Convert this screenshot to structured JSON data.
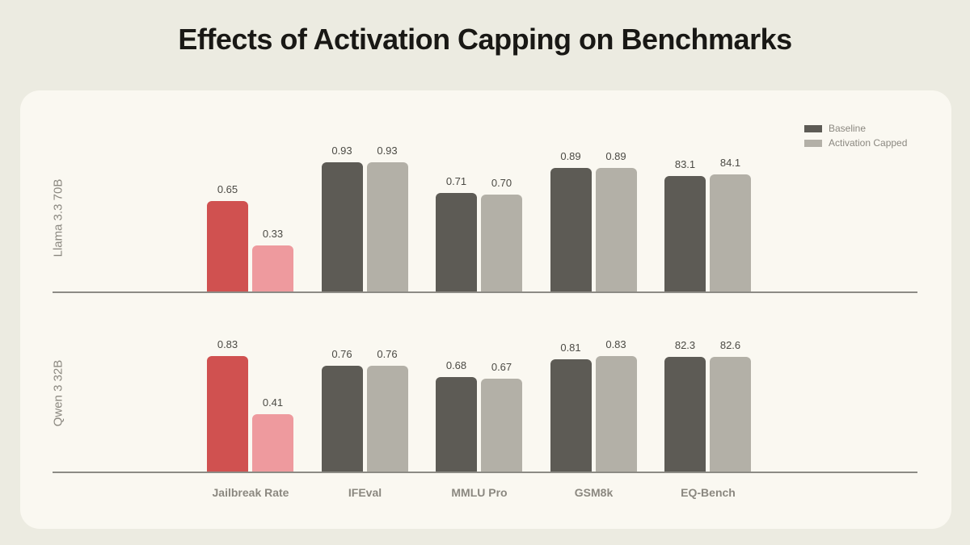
{
  "page": {
    "title": "Effects of Activation Capping on Benchmarks"
  },
  "legend": {
    "items": [
      {
        "label": "Baseline",
        "color_key": "baseline"
      },
      {
        "label": "Activation Capped",
        "color_key": "capped"
      }
    ]
  },
  "colors": {
    "baseline": "#5d5b55",
    "capped": "#b3b0a7",
    "jailbreak_baseline": "#d05150",
    "jailbreak_capped": "#ee9a9e",
    "axis": "#8c8b85",
    "page_bg": "#ecebe1",
    "card_bg": "#faf8f1",
    "title_text": "#191815",
    "muted_text": "#8b8880",
    "value_text": "#4b4a44"
  },
  "chart_data": {
    "type": "bar",
    "title": "Effects of Activation Capping on Benchmarks",
    "categories": [
      "Jailbreak Rate",
      "IFEval",
      "MMLU Pro",
      "GSM8k",
      "EQ-Bench"
    ],
    "legend_entries": [
      "Baseline",
      "Activation Capped"
    ],
    "legend_position": "top-right",
    "grid": false,
    "value_axis_range": [
      0,
      1
    ],
    "normalization_note": "EQ-Bench values are on a 0-100 scale and drawn as value/100; Jailbreak Rate bars use red/pink colors",
    "panels": [
      {
        "model": "Llama 3.3 70B",
        "series": [
          {
            "name": "Baseline",
            "values": [
              0.65,
              0.93,
              0.71,
              0.89,
              83.1
            ],
            "labels": [
              "0.65",
              "0.93",
              "0.71",
              "0.89",
              "83.1"
            ]
          },
          {
            "name": "Activation Capped",
            "values": [
              0.33,
              0.93,
              0.7,
              0.89,
              84.1
            ],
            "labels": [
              "0.33",
              "0.93",
              "0.70",
              "0.89",
              "84.1"
            ]
          }
        ]
      },
      {
        "model": "Qwen 3 32B",
        "series": [
          {
            "name": "Baseline",
            "values": [
              0.83,
              0.76,
              0.68,
              0.81,
              82.3
            ],
            "labels": [
              "0.83",
              "0.76",
              "0.68",
              "0.81",
              "82.3"
            ]
          },
          {
            "name": "Activation Capped",
            "values": [
              0.41,
              0.76,
              0.67,
              0.83,
              82.6
            ],
            "labels": [
              "0.41",
              "0.76",
              "0.67",
              "0.83",
              "82.6"
            ]
          }
        ]
      }
    ]
  }
}
